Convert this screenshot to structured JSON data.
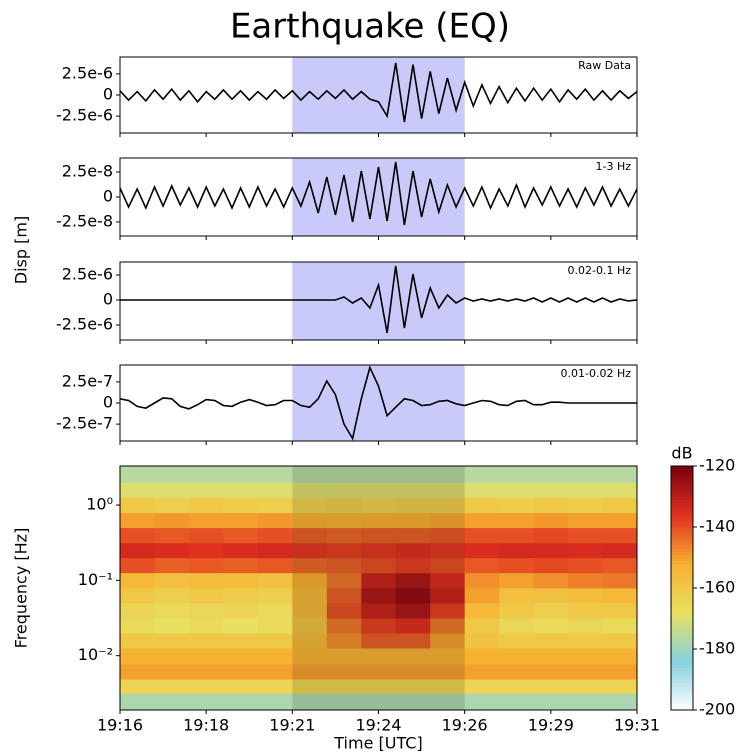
{
  "title": "Earthquake (EQ)",
  "ylabel": "Disp [m]",
  "chart_data": [
    {
      "type": "line",
      "label": "Raw Data",
      "color": "#000000",
      "xlim": [
        16,
        31
      ],
      "ylim": [
        -4.5e-06,
        4.5e-06
      ],
      "yticks": [
        {
          "value": 2.5e-06,
          "label": "2.5e-6"
        },
        0,
        {
          "value": -2.5e-06,
          "label": "-2.5e-6"
        }
      ],
      "highlight": [
        21,
        26
      ],
      "highlight_color": "#6464f0",
      "x": [
        16,
        16.25,
        16.5,
        16.75,
        17,
        17.25,
        17.5,
        17.75,
        18,
        18.25,
        18.5,
        18.75,
        19,
        19.25,
        19.5,
        19.75,
        20,
        20.25,
        20.5,
        20.75,
        21,
        21.25,
        21.5,
        21.75,
        22,
        22.25,
        22.5,
        22.75,
        23,
        23.25,
        23.5,
        23.75,
        24,
        24.25,
        24.5,
        24.75,
        25,
        25.25,
        25.5,
        25.75,
        26,
        26.25,
        26.5,
        26.75,
        27,
        27.25,
        27.5,
        27.75,
        28,
        28.25,
        28.5,
        28.75,
        29,
        29.25,
        29.5,
        29.75,
        30,
        30.25,
        30.5,
        30.75,
        31
      ],
      "values": [
        5e-07,
        -6e-07,
        4e-07,
        -7e-07,
        6e-07,
        -5e-07,
        7e-07,
        -6e-07,
        5e-07,
        -8e-07,
        4e-07,
        -5e-07,
        6e-07,
        -5e-07,
        5e-07,
        -6e-07,
        4e-07,
        -5e-07,
        6e-07,
        -4e-07,
        5e-07,
        -6e-07,
        4e-07,
        -5e-07,
        5e-07,
        -4e-07,
        6e-07,
        -5e-07,
        4e-07,
        -5e-07,
        -8e-07,
        -2.5e-06,
        3.8e-06,
        -3.2e-06,
        3.6e-06,
        -2.8e-06,
        2.8e-06,
        -2.2e-06,
        2e-06,
        -1.8e-06,
        1.5e-06,
        -1.3e-06,
        1.2e-06,
        -1e-06,
        1e-06,
        -9e-07,
        8e-07,
        -7e-07,
        8e-07,
        -6e-07,
        7e-07,
        -8e-07,
        6e-07,
        -5e-07,
        7e-07,
        -6e-07,
        5e-07,
        -6e-07,
        5e-07,
        -4e-07,
        4e-07
      ]
    },
    {
      "type": "line",
      "label": "1-3 Hz",
      "color": "#000000",
      "xlim": [
        16,
        31
      ],
      "ylim": [
        -3.9e-08,
        3.9e-08
      ],
      "yticks": [
        {
          "value": 2.5e-08,
          "label": "2.5e-8"
        },
        0,
        {
          "value": -2.5e-08,
          "label": "-2.5e-8"
        }
      ],
      "highlight": [
        21,
        26
      ],
      "highlight_color": "#6464f0",
      "x": [
        16,
        16.25,
        16.5,
        16.75,
        17,
        17.25,
        17.5,
        17.75,
        18,
        18.25,
        18.5,
        18.75,
        19,
        19.25,
        19.5,
        19.75,
        20,
        20.25,
        20.5,
        20.75,
        21,
        21.25,
        21.5,
        21.75,
        22,
        22.25,
        22.5,
        22.75,
        23,
        23.25,
        23.5,
        23.75,
        24,
        24.25,
        24.5,
        24.75,
        25,
        25.25,
        25.5,
        25.75,
        26,
        26.25,
        26.5,
        26.75,
        27,
        27.25,
        27.5,
        27.75,
        28,
        28.25,
        28.5,
        28.75,
        29,
        29.25,
        29.5,
        29.75,
        30,
        30.25,
        30.5,
        30.75,
        31
      ],
      "values": [
        9e-09,
        -1e-08,
        8e-09,
        -1.1e-08,
        1e-08,
        -9e-09,
        1.1e-08,
        -8e-09,
        9e-09,
        -1e-08,
        1e-08,
        -9e-09,
        8e-09,
        -1.1e-08,
        9e-09,
        -1e-08,
        1e-08,
        -9e-09,
        8e-09,
        -1e-08,
        9e-09,
        -9e-09,
        1.5e-08,
        -1.6e-08,
        2e-08,
        -1.8e-08,
        2.2e-08,
        -2.5e-08,
        2.6e-08,
        -2.2e-08,
        3e-08,
        -2.4e-08,
        3.5e-08,
        -2.8e-08,
        2.6e-08,
        -2e-08,
        1.8e-08,
        -1.5e-08,
        1.2e-08,
        -1e-08,
        9e-09,
        -9e-09,
        1e-08,
        -1.1e-08,
        8e-09,
        -9e-09,
        1.2e-08,
        -1e-08,
        9e-09,
        -8e-09,
        1e-08,
        -9e-09,
        8e-09,
        -1e-08,
        9e-09,
        -8e-09,
        1e-08,
        -9e-09,
        8e-09,
        -9e-09,
        8e-09
      ]
    },
    {
      "type": "line",
      "label": "0.02-0.1 Hz",
      "color": "#000000",
      "xlim": [
        16,
        31
      ],
      "ylim": [
        -4e-06,
        3.8e-06
      ],
      "yticks": [
        {
          "value": 2.5e-06,
          "label": "2.5e-6"
        },
        0,
        {
          "value": -2.5e-06,
          "label": "-2.5e-6"
        }
      ],
      "highlight": [
        21,
        26
      ],
      "highlight_color": "#6464f0",
      "x": [
        16,
        16.25,
        16.5,
        16.75,
        17,
        17.25,
        17.5,
        17.75,
        18,
        18.25,
        18.5,
        18.75,
        19,
        19.25,
        19.5,
        19.75,
        20,
        20.25,
        20.5,
        20.75,
        21,
        21.25,
        21.5,
        21.75,
        22,
        22.25,
        22.5,
        22.75,
        23,
        23.25,
        23.5,
        23.75,
        24,
        24.25,
        24.5,
        24.75,
        25,
        25.25,
        25.5,
        25.75,
        26,
        26.25,
        26.5,
        26.75,
        27,
        27.25,
        27.5,
        27.75,
        28,
        28.25,
        28.5,
        28.75,
        29,
        29.25,
        29.5,
        29.75,
        30,
        30.25,
        30.5,
        30.75,
        31
      ],
      "values": [
        0,
        0,
        0,
        0,
        0,
        0,
        0,
        0,
        0,
        0,
        0,
        0,
        0,
        0,
        0,
        0,
        0,
        0,
        0,
        0,
        0,
        0,
        0,
        0,
        0,
        0,
        3e-07,
        -3e-07,
        2e-07,
        -8e-07,
        1.5e-06,
        -3.3e-06,
        3.4e-06,
        -2.8e-06,
        2.6e-06,
        -1.8e-06,
        1.2e-06,
        -8e-07,
        5e-07,
        -3e-07,
        2e-07,
        -1e-07,
        1e-07,
        -1e-07,
        1e-07,
        -1e-07,
        1e-07,
        -1e-07,
        2e-07,
        -2e-07,
        2e-07,
        -2e-07,
        2e-07,
        -2e-07,
        2e-07,
        -2e-07,
        2e-07,
        -2e-07,
        1e-07,
        -1e-07,
        0
      ]
    },
    {
      "type": "line",
      "label": "0.01-0.02 Hz",
      "color": "#000000",
      "xlim": [
        16,
        31
      ],
      "ylim": [
        -4.5e-07,
        4.5e-07
      ],
      "yticks": [
        {
          "value": 2.5e-07,
          "label": "2.5e-7"
        },
        0,
        {
          "value": -2.5e-07,
          "label": "-2.5e-7"
        }
      ],
      "highlight": [
        21,
        26
      ],
      "highlight_color": "#6464f0",
      "x": [
        16,
        16.25,
        16.5,
        16.75,
        17,
        17.25,
        17.5,
        17.75,
        18,
        18.25,
        18.5,
        18.75,
        19,
        19.25,
        19.5,
        19.75,
        20,
        20.25,
        20.5,
        20.75,
        21,
        21.25,
        21.5,
        21.75,
        22,
        22.25,
        22.5,
        22.75,
        23,
        23.25,
        23.5,
        23.75,
        24,
        24.25,
        24.5,
        24.75,
        25,
        25.25,
        25.5,
        25.75,
        26,
        26.25,
        26.5,
        26.75,
        27,
        27.25,
        27.5,
        27.75,
        28,
        28.25,
        28.5,
        28.75,
        29,
        29.25,
        29.5,
        29.75,
        30,
        30.25,
        30.5,
        30.75,
        31
      ],
      "values": [
        5e-08,
        3e-08,
        -4e-08,
        -6e-08,
        0,
        6e-08,
        5e-08,
        -4e-08,
        -7e-08,
        -2e-08,
        4e-08,
        3e-08,
        -3e-08,
        -4e-08,
        1e-08,
        4e-08,
        1e-08,
        -3e-08,
        -2e-08,
        3e-08,
        3e-08,
        -3e-08,
        -5e-08,
        5e-08,
        2.6e-07,
        1e-07,
        -2.5e-07,
        -4.2e-07,
        5e-08,
        4.2e-07,
        2e-07,
        -1.5e-07,
        -5e-08,
        5e-08,
        3e-08,
        -3e-08,
        -2e-08,
        2e-08,
        3e-08,
        -1e-08,
        -3e-08,
        0,
        3e-08,
        2e-08,
        -2e-08,
        -3e-08,
        2e-08,
        3e-08,
        -2e-08,
        -2e-08,
        1e-08,
        1e-08,
        0,
        0,
        0,
        0,
        0,
        0,
        0,
        0,
        0
      ]
    },
    {
      "type": "heatmap",
      "ylabel": "Frequency [Hz]",
      "xlabel": "Time [UTC]",
      "log_y": true,
      "xlim": [
        16,
        31
      ],
      "ylim": [
        0.0019,
        3.3
      ],
      "xticks": [
        {
          "value": 16,
          "label": "19:16"
        },
        {
          "value": 18.5,
          "label": "19:18"
        },
        {
          "value": 21,
          "label": "19:21"
        },
        {
          "value": 23.5,
          "label": "19:24"
        },
        {
          "value": 26,
          "label": "19:26"
        },
        {
          "value": 28.5,
          "label": "19:29"
        },
        {
          "value": 31,
          "label": "19:31"
        }
      ],
      "yticks": [
        {
          "value": 1,
          "label": "10⁰"
        },
        {
          "value": 0.1,
          "label": "10⁻¹"
        },
        {
          "value": 0.01,
          "label": "10⁻²"
        }
      ],
      "highlight": [
        21,
        26
      ],
      "highlight_color": "#000000",
      "x": [
        16.5,
        17.5,
        18.5,
        19.5,
        20.5,
        21.5,
        22.5,
        23.5,
        24.5,
        25.5,
        26.5,
        27.5,
        28.5,
        29.5,
        30.5
      ],
      "y": [
        0.0025,
        0.004,
        0.006,
        0.01,
        0.016,
        0.025,
        0.04,
        0.063,
        0.1,
        0.16,
        0.25,
        0.4,
        0.63,
        1,
        1.6,
        2.5
      ],
      "z": [
        [
          -178,
          -178,
          -178,
          -178,
          -178,
          -178,
          -178,
          -178,
          -178,
          -178,
          -178,
          -178,
          -178,
          -178,
          -178
        ],
        [
          -164,
          -164,
          -164,
          -164,
          -164,
          -164,
          -164,
          -164,
          -164,
          -164,
          -164,
          -164,
          -164,
          -164,
          -164
        ],
        [
          -150,
          -150,
          -150,
          -150,
          -150,
          -150,
          -150,
          -150,
          -150,
          -150,
          -150,
          -150,
          -150,
          -150,
          -150
        ],
        [
          -153,
          -153,
          -153,
          -153,
          -153,
          -153,
          -153,
          -153,
          -153,
          -153,
          -153,
          -153,
          -153,
          -153,
          -153
        ],
        [
          -160,
          -160,
          -160,
          -160,
          -160,
          -155,
          -148,
          -142,
          -142,
          -150,
          -158,
          -160,
          -160,
          -160,
          -160
        ],
        [
          -166,
          -168,
          -166,
          -168,
          -166,
          -158,
          -145,
          -138,
          -136,
          -145,
          -160,
          -165,
          -166,
          -165,
          -166
        ],
        [
          -164,
          -166,
          -165,
          -164,
          -166,
          -155,
          -140,
          -132,
          -128,
          -138,
          -155,
          -160,
          -162,
          -160,
          -160
        ],
        [
          -160,
          -162,
          -160,
          -161,
          -162,
          -155,
          -142,
          -128,
          -124,
          -132,
          -150,
          -157,
          -158,
          -156,
          -155
        ],
        [
          -155,
          -157,
          -156,
          -156,
          -157,
          -152,
          -145,
          -132,
          -128,
          -135,
          -148,
          -150,
          -148,
          -146,
          -145
        ],
        [
          -140,
          -142,
          -141,
          -142,
          -141,
          -143,
          -142,
          -140,
          -138,
          -140,
          -141,
          -140,
          -139,
          -140,
          -141
        ],
        [
          -134,
          -135,
          -136,
          -135,
          -134,
          -137,
          -138,
          -137,
          -136,
          -137,
          -135,
          -134,
          -134,
          -135,
          -134
        ],
        [
          -140,
          -141,
          -140,
          -141,
          -140,
          -142,
          -143,
          -142,
          -142,
          -141,
          -140,
          -140,
          -139,
          -140,
          -140
        ],
        [
          -150,
          -149,
          -150,
          -150,
          -149,
          -152,
          -153,
          -152,
          -152,
          -151,
          -150,
          -150,
          -149,
          -150,
          -150
        ],
        [
          -160,
          -162,
          -160,
          -161,
          -162,
          -163,
          -162,
          -163,
          -162,
          -161,
          -160,
          -161,
          -160,
          -161,
          -160
        ],
        [
          -170,
          -170,
          -170,
          -170,
          -170,
          -170,
          -170,
          -170,
          -170,
          -170,
          -170,
          -170,
          -170,
          -170,
          -170
        ],
        [
          -176,
          -176,
          -176,
          -176,
          -176,
          -176,
          -176,
          -176,
          -176,
          -176,
          -176,
          -176,
          -176,
          -176,
          -176
        ]
      ],
      "colorbar": {
        "label": "dB",
        "lim": [
          -200,
          -120
        ],
        "ticks": [
          -120,
          -140,
          -160,
          -180,
          -200
        ],
        "colormap": [
          "#ffffff",
          "#86d0e0",
          "#e8e060",
          "#f7b030",
          "#e03020",
          "#7a0010"
        ]
      }
    }
  ]
}
